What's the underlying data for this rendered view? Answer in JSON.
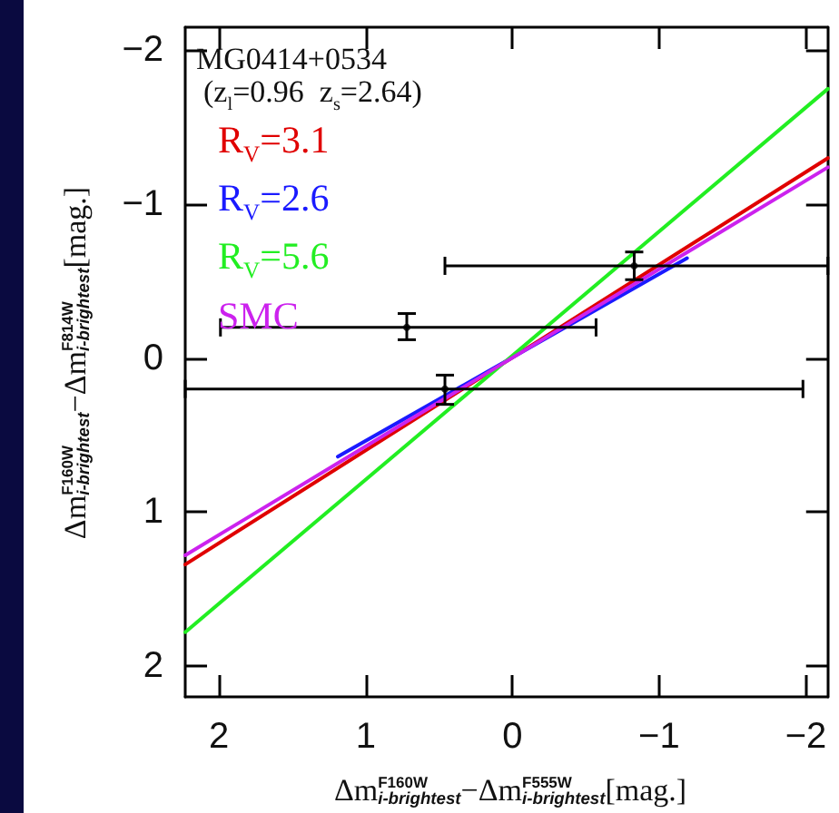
{
  "chart_data": {
    "type": "line",
    "xlabel": "Δm$^{F160W}$$_{i-brightest}$−Δm$^{F555W}$$_{i-brightest}$[mag.]",
    "ylabel": "Δm$^{F160W}$$_{i-brightest}$−Δm$^{F814W}$$_{i-brightest}$[mag.]",
    "annotations": [
      "MG0414+0534",
      "(z$_{l}$=0.96  z$_{s}$=2.64)"
    ],
    "series": [
      {
        "name": "R$_{V}$=3.1",
        "color": "#e00000",
        "x": [
          2.23,
          -2.15
        ],
        "values": [
          1.34,
          -1.3
        ]
      },
      {
        "name": "R$_{V}$=2.6",
        "color": "#1a1aff",
        "x": [
          1.19,
          -1.19
        ],
        "values": [
          0.64,
          -0.65
        ]
      },
      {
        "name": "R$_{V}$=5.6",
        "color": "#22ee22",
        "x": [
          2.23,
          -2.15
        ],
        "values": [
          1.78,
          -1.75
        ]
      },
      {
        "name": "SMC",
        "color": "#cc22ee",
        "x": [
          2.23,
          -2.15
        ],
        "values": [
          1.28,
          -1.24
        ]
      },
      {
        "type": "scatter",
        "color": "#000000",
        "marker": "circle",
        "x": [
          -0.83,
          0.72,
          0.46
        ],
        "values": [
          -0.6,
          -0.2,
          0.2
        ],
        "errors": [
          [
            -0.69,
            -0.51
          ],
          [
            -0.29,
            -0.12
          ],
          [
            0.11,
            0.3
          ]
        ],
        "xerrors": [
          [
            -2.15,
            0.46
          ],
          [
            -0.57,
            1.99
          ],
          [
            -1.98,
            2.23
          ]
        ]
      }
    ],
    "xlim": [
      2.23,
      -2.15
    ],
    "ylim": [
      2.2,
      -2.15
    ],
    "xticks": [
      2,
      1,
      0,
      -1,
      -2
    ],
    "yticks": [
      -2,
      -1,
      0,
      1,
      2
    ],
    "grid": false,
    "legend": "top left"
  }
}
